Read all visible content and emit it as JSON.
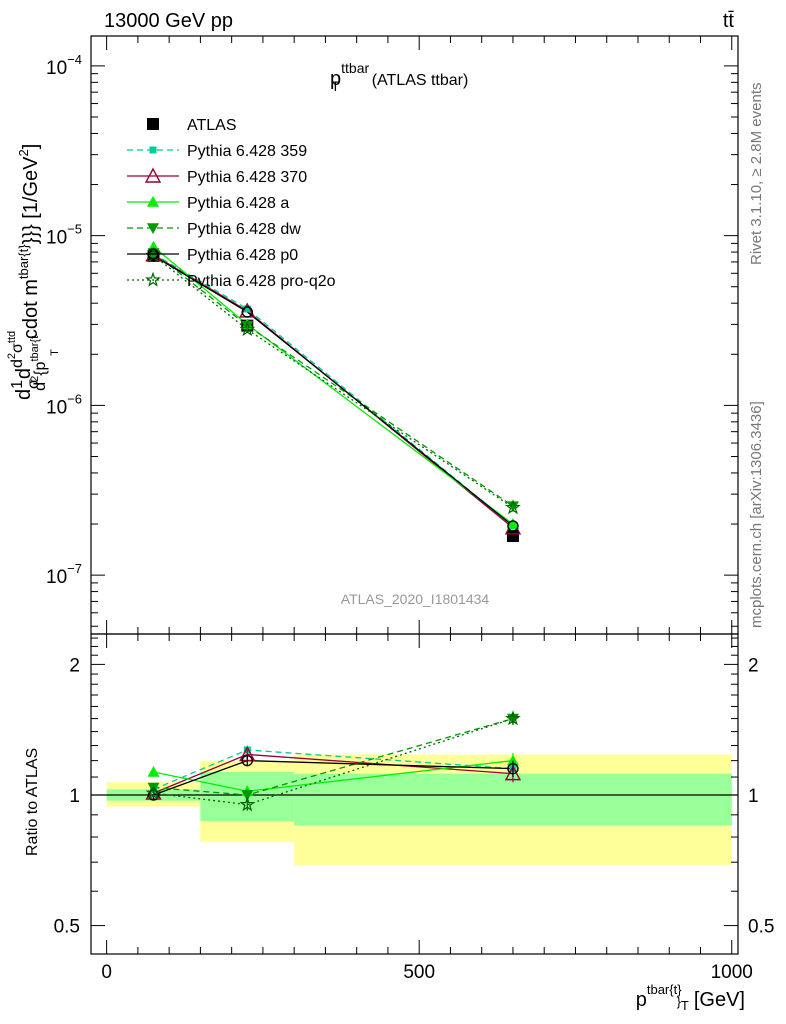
{
  "header": {
    "energy_label": "13000 GeV pp",
    "process_label": "tt̄"
  },
  "plot_title": {
    "main": "p",
    "sub": "T",
    "sup": "ttbar",
    "suffix": "(ATLAS ttbar)"
  },
  "watermark": "ATLAS_2020_I1801434",
  "side_label_top": "Rivet 3.1.10, ≥ 2.8M events",
  "side_label_bottom": "mcplots.cern.ch [arXiv:1306.3436]",
  "ylabel_main": {
    "pre": "d",
    "frac1_num": "1",
    "frac1_den": "σ",
    "d": "d",
    "frac2_num": "d",
    "frac2_num_sup": "2",
    "frac2_num_sigma": "σ",
    "frac2_num_sup2": "ttd",
    "frac2_den": "d",
    "frac2_den_sup": "2",
    "frac2_den_rest": "{p",
    "frac2_den_sup2": "tbar{t",
    "frac2_den_sub": "T",
    "rest": "cdot m",
    "rest_sup": "tbar{t}",
    "rest_tail": "}}} [1/GeV",
    "rest_tail_sup": "2",
    "rest_close": "]"
  },
  "ylabel_ratio": "Ratio to ATLAS",
  "xlabel": {
    "main": "p",
    "sup": "tbar{t}",
    "sub": "T",
    "bracket": "}",
    "unit": "[GeV]"
  },
  "x_ticks": [
    "0",
    "500",
    "1000"
  ],
  "ratio_ticks": [
    "0.5",
    "1",
    "2"
  ],
  "main_ticks": [
    {
      "base": "10",
      "exp": "−7",
      "value": 1e-07
    },
    {
      "base": "10",
      "exp": "−6",
      "value": 1e-06
    },
    {
      "base": "10",
      "exp": "−5",
      "value": 1e-05
    },
    {
      "base": "10",
      "exp": "−4",
      "value": 0.0001
    }
  ],
  "colors": {
    "band_outer": "#ffff99",
    "band_inner": "#99ff99",
    "atlas": "#000000",
    "p359": "#00cc99",
    "p370": "#990033",
    "pa": "#00ee00",
    "pdw": "#009900",
    "pp0": "#000000",
    "pq2o": "#006600"
  },
  "chart_data": [
    {
      "type": "scatter",
      "panel": "main",
      "yscale": "log",
      "xlim": [
        -25,
        1010
      ],
      "ylim": [
        4.5e-08,
        0.00015
      ],
      "x": [
        75,
        225,
        650
      ],
      "x_bins": [
        [
          0,
          150
        ],
        [
          150,
          300
        ],
        [
          300,
          1000
        ]
      ],
      "legend_position": "upper-left",
      "series": [
        {
          "name": "ATLAS",
          "key": "atlas",
          "marker": "square",
          "line": "none",
          "values": [
            7.6e-06,
            2.95e-06,
            1.7e-07
          ]
        },
        {
          "name": "Pythia 6.428 359",
          "key": "p359",
          "marker": "square-small",
          "line": "dashed",
          "values": [
            7.8e-06,
            3.7e-06,
            1.95e-07
          ]
        },
        {
          "name": "Pythia 6.428 370",
          "key": "p370",
          "marker": "triangle-open",
          "line": "solid",
          "values": [
            7.7e-06,
            3.6e-06,
            1.9e-07
          ]
        },
        {
          "name": "Pythia 6.428 a",
          "key": "pa",
          "marker": "triangle",
          "line": "solid",
          "values": [
            8.6e-06,
            3e-06,
            2e-07
          ]
        },
        {
          "name": "Pythia 6.428 dw",
          "key": "pdw",
          "marker": "triangle-down",
          "line": "dashed",
          "values": [
            7.9e-06,
            2.95e-06,
            2.55e-07
          ]
        },
        {
          "name": "Pythia 6.428 p0",
          "key": "pp0",
          "marker": "circle-open",
          "line": "solid",
          "values": [
            7.6e-06,
            3.55e-06,
            1.95e-07
          ]
        },
        {
          "name": "Pythia 6.428 pro-q2o",
          "key": "pq2o",
          "marker": "star-open",
          "line": "dotted",
          "values": [
            7.65e-06,
            2.8e-06,
            2.5e-07
          ]
        }
      ]
    },
    {
      "type": "scatter",
      "panel": "ratio",
      "yscale": "log",
      "xlim": [
        -25,
        1010
      ],
      "ylim": [
        0.43,
        2.35
      ],
      "x": [
        75,
        225,
        650
      ],
      "bands": {
        "x_bins": [
          [
            0,
            150
          ],
          [
            150,
            300
          ],
          [
            300,
            1000
          ]
        ],
        "inner": [
          [
            0.97,
            1.03
          ],
          [
            0.87,
            1.13
          ],
          [
            0.85,
            1.12
          ]
        ],
        "outer": [
          [
            0.94,
            1.07
          ],
          [
            0.78,
            1.2
          ],
          [
            0.69,
            1.24
          ]
        ]
      },
      "series": [
        {
          "key": "p359",
          "values": [
            1.03,
            1.27,
            1.15
          ],
          "errors": [
            0.02,
            0.03,
            0.05
          ]
        },
        {
          "key": "p370",
          "values": [
            1.01,
            1.24,
            1.12
          ],
          "errors": [
            0.02,
            0.03,
            0.05
          ]
        },
        {
          "key": "pa",
          "values": [
            1.13,
            1.02,
            1.2
          ],
          "errors": [
            0.02,
            0.03,
            0.05
          ]
        },
        {
          "key": "pdw",
          "values": [
            1.04,
            1.0,
            1.5
          ],
          "errors": [
            0.02,
            0.03,
            0.05
          ]
        },
        {
          "key": "pp0",
          "values": [
            1.0,
            1.2,
            1.15
          ],
          "errors": [
            0.02,
            0.03,
            0.05
          ]
        },
        {
          "key": "pq2o",
          "values": [
            1.01,
            0.95,
            1.5
          ],
          "errors": [
            0.02,
            0.03,
            0.05
          ]
        }
      ]
    }
  ]
}
